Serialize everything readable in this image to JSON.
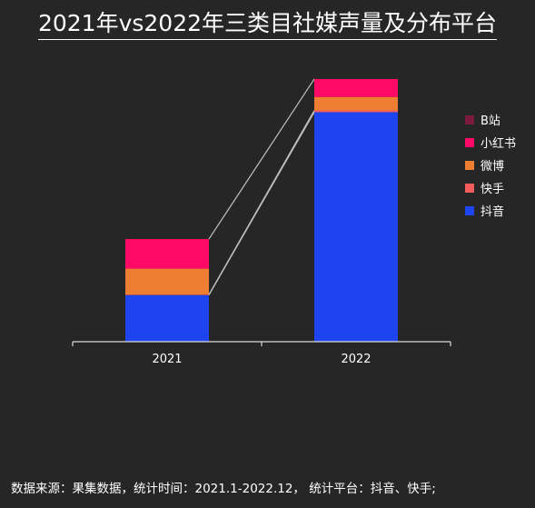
{
  "title": "2021年vs2022年三类目社媒声量及分布平台",
  "source": "数据来源：果集数据，统计时间：2021.1-2022.12， 统计平台：抖音、快手;",
  "chart_data": {
    "type": "bar",
    "stacked": true,
    "categories": [
      "2021",
      "2022"
    ],
    "series": [
      {
        "name": "抖音",
        "color": "#1e44f0",
        "values": [
          52,
          256
        ]
      },
      {
        "name": "快手",
        "color": "#f25c5c",
        "values": [
          0.5,
          2
        ]
      },
      {
        "name": "微博",
        "color": "#ee7e32",
        "values": [
          29,
          15
        ]
      },
      {
        "name": "小红书",
        "color": "#ff0a66",
        "values": [
          33,
          20
        ]
      },
      {
        "name": "B站",
        "color": "#7a1a3e",
        "values": [
          0,
          0
        ]
      }
    ],
    "ylim": [
      0,
      300
    ],
    "legend_position": "right",
    "connector_lines": true,
    "grid": false
  }
}
